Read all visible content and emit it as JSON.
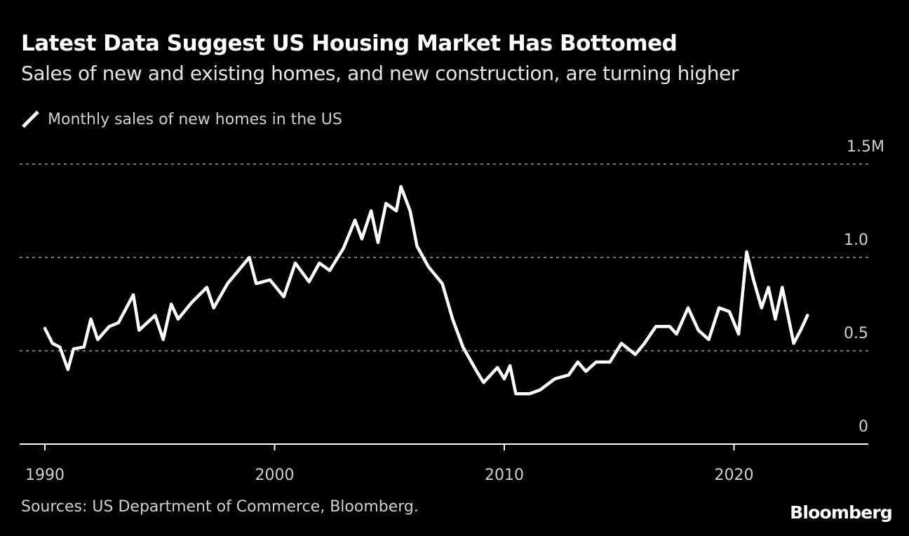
{
  "title": "Latest Data Suggest US Housing Market Has Bottomed",
  "subtitle": "Sales of new and existing homes, and new construction, are turning higher",
  "source": "Sources: US Department of Commerce, Bloomberg.",
  "logo": "Bloomberg",
  "chart_data": {
    "type": "line",
    "title": "Latest Data Suggest US Housing Market Has Bottomed",
    "subtitle": "Sales of new and existing homes, and new construction, are turning higher",
    "legend_position": "top-left",
    "grid": true,
    "xlim": [
      1990,
      2025
    ],
    "ylim": [
      0,
      1.5
    ],
    "x_ticks": [
      1990,
      2000,
      2010,
      2020
    ],
    "x_tick_labels": [
      "1990",
      "2000",
      "2010",
      "2020"
    ],
    "y_ticks": [
      0,
      0.5,
      1.0,
      1.5
    ],
    "y_tick_labels": [
      "0",
      "0.5",
      "1.0",
      "1.5M"
    ],
    "line_color": "#ffffff",
    "series": [
      {
        "name": "Monthly sales of new homes in the US",
        "x": [
          1990.0,
          1990.33,
          1990.65,
          1991.0,
          1991.25,
          1991.7,
          1992.0,
          1992.3,
          1992.8,
          1993.2,
          1993.85,
          1994.1,
          1994.8,
          1995.15,
          1995.5,
          1995.8,
          1996.4,
          1997.05,
          1997.35,
          1997.95,
          1998.9,
          1999.2,
          1999.8,
          2000.4,
          2000.9,
          2001.5,
          2001.95,
          2002.4,
          2003.0,
          2003.5,
          2003.8,
          2004.2,
          2004.5,
          2004.85,
          2005.3,
          2005.5,
          2005.9,
          2006.2,
          2006.7,
          2007.3,
          2007.75,
          2008.2,
          2008.8,
          2009.1,
          2009.7,
          2010.0,
          2010.25,
          2010.5,
          2011.1,
          2011.55,
          2012.2,
          2012.8,
          2013.2,
          2013.55,
          2014.0,
          2014.6,
          2015.1,
          2015.7,
          2016.1,
          2016.6,
          2017.2,
          2017.5,
          2018.0,
          2018.45,
          2018.9,
          2019.35,
          2019.8,
          2020.2,
          2020.55,
          2020.85,
          2021.2,
          2021.5,
          2021.8,
          2022.1,
          2022.6,
          2022.9,
          2023.2
        ],
        "y": [
          0.62,
          0.54,
          0.52,
          0.4,
          0.51,
          0.52,
          0.67,
          0.56,
          0.63,
          0.65,
          0.8,
          0.61,
          0.69,
          0.56,
          0.75,
          0.67,
          0.76,
          0.84,
          0.73,
          0.86,
          1.0,
          0.86,
          0.88,
          0.79,
          0.97,
          0.87,
          0.97,
          0.93,
          1.05,
          1.2,
          1.1,
          1.25,
          1.08,
          1.29,
          1.25,
          1.38,
          1.25,
          1.06,
          0.95,
          0.86,
          0.67,
          0.52,
          0.39,
          0.33,
          0.41,
          0.35,
          0.42,
          0.27,
          0.27,
          0.29,
          0.35,
          0.37,
          0.44,
          0.39,
          0.44,
          0.44,
          0.54,
          0.48,
          0.54,
          0.63,
          0.63,
          0.59,
          0.73,
          0.61,
          0.56,
          0.73,
          0.71,
          0.59,
          1.03,
          0.88,
          0.73,
          0.84,
          0.67,
          0.84,
          0.54,
          0.61,
          0.69
        ]
      }
    ]
  }
}
